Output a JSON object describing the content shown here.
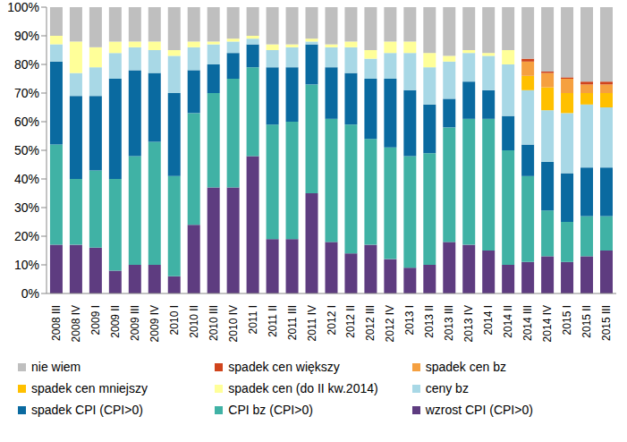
{
  "chart_data": {
    "type": "bar",
    "stacked": true,
    "legend": "bottom",
    "grid": false,
    "categories": [
      "2008 III",
      "2008 IV",
      "2009 I",
      "2009 II",
      "2009 III",
      "2009 IV",
      "2010 I",
      "2010 II",
      "2010 III",
      "2010 IV",
      "2011 I",
      "2011 II",
      "2011 III",
      "2011 IV",
      "2012 I",
      "2012 II",
      "2012 III",
      "2012 IV",
      "2013 I",
      "2013 II",
      "2013 III",
      "2013 IV",
      "2014 I",
      "2014 II",
      "2014 III",
      "2014 IV",
      "2015 I",
      "2015 II",
      "2015 III"
    ],
    "ylim": [
      0,
      100
    ],
    "yticks": [
      {
        "value": 0,
        "label": "0%"
      },
      {
        "value": 10,
        "label": "10%"
      },
      {
        "value": 20,
        "label": "20%"
      },
      {
        "value": 30,
        "label": "30%"
      },
      {
        "value": 40,
        "label": "40%"
      },
      {
        "value": 50,
        "label": "50%"
      },
      {
        "value": 60,
        "label": "60%"
      },
      {
        "value": 70,
        "label": "70%"
      },
      {
        "value": 80,
        "label": "80%"
      },
      {
        "value": 90,
        "label": "90%"
      },
      {
        "value": 100,
        "label": "100%"
      }
    ],
    "series": [
      {
        "name": "wzrost CPI (CPI>0)",
        "color": "#5E3C80",
        "values": [
          17,
          17,
          16,
          8,
          10,
          10,
          6,
          24,
          37,
          37,
          48,
          19,
          19,
          35,
          18,
          14,
          17,
          12,
          9,
          10,
          18,
          17,
          15,
          10,
          11,
          13,
          11,
          13,
          15
        ]
      },
      {
        "name": "CPI bz (CPI>0)",
        "color": "#40B2A5",
        "values": [
          35,
          23,
          27,
          32,
          38,
          43,
          35,
          39,
          33,
          38,
          31,
          40,
          41,
          38,
          43,
          45,
          37,
          39,
          39,
          39,
          40,
          44,
          46,
          40,
          30,
          16,
          14,
          14,
          12
        ]
      },
      {
        "name": "spadek CPI (CPI>0)",
        "color": "#0A6AA0",
        "values": [
          29,
          29,
          26,
          35,
          30,
          24,
          29,
          15,
          10,
          9,
          8,
          20,
          19,
          14,
          18,
          18,
          21,
          24,
          23,
          17,
          10,
          13,
          10,
          12,
          11,
          17,
          17,
          17,
          17
        ]
      },
      {
        "name": "ceny bz",
        "color": "#A8D8E6",
        "values": [
          6,
          8,
          10,
          9,
          8,
          8,
          13,
          8,
          7,
          4,
          2,
          6,
          7,
          1,
          7,
          9,
          7,
          9,
          13,
          13,
          13,
          10,
          12,
          18,
          19,
          18,
          21,
          22,
          21
        ]
      },
      {
        "name": "spadek cen (do II kw.2014)",
        "color": "#FFFF99",
        "values": [
          3,
          11,
          7,
          4,
          2,
          3,
          2,
          2,
          1,
          1,
          1,
          2,
          1,
          1,
          1,
          2,
          3,
          4,
          4,
          5,
          2,
          1,
          1,
          5,
          null,
          null,
          null,
          null,
          null
        ]
      },
      {
        "name": "spadek cen mniejszy",
        "color": "#FFC000",
        "values": [
          null,
          null,
          null,
          null,
          null,
          null,
          null,
          null,
          null,
          null,
          null,
          null,
          null,
          null,
          null,
          null,
          null,
          null,
          null,
          null,
          null,
          null,
          null,
          null,
          5,
          8,
          7,
          4,
          5
        ]
      },
      {
        "name": "spadek cen bz",
        "color": "#F5A040",
        "values": [
          null,
          null,
          null,
          null,
          null,
          null,
          null,
          null,
          null,
          null,
          null,
          null,
          null,
          null,
          null,
          null,
          null,
          null,
          null,
          null,
          null,
          null,
          null,
          null,
          5,
          5,
          5,
          3,
          3
        ]
      },
      {
        "name": "spadek cen większy",
        "color": "#D0441C",
        "values": [
          null,
          null,
          null,
          null,
          null,
          null,
          null,
          null,
          null,
          null,
          null,
          null,
          null,
          null,
          null,
          null,
          null,
          null,
          null,
          null,
          null,
          null,
          null,
          null,
          1,
          0.5,
          0.5,
          1,
          1
        ]
      },
      {
        "name": "nie wiem",
        "color": "#BFBFBF",
        "values": [
          10,
          12,
          14,
          12,
          12,
          12,
          15,
          12,
          12,
          11,
          10,
          13,
          13,
          11,
          13,
          12,
          15,
          12,
          12,
          16,
          17,
          15,
          16,
          15,
          18,
          22.5,
          24.5,
          26,
          26
        ]
      }
    ]
  }
}
